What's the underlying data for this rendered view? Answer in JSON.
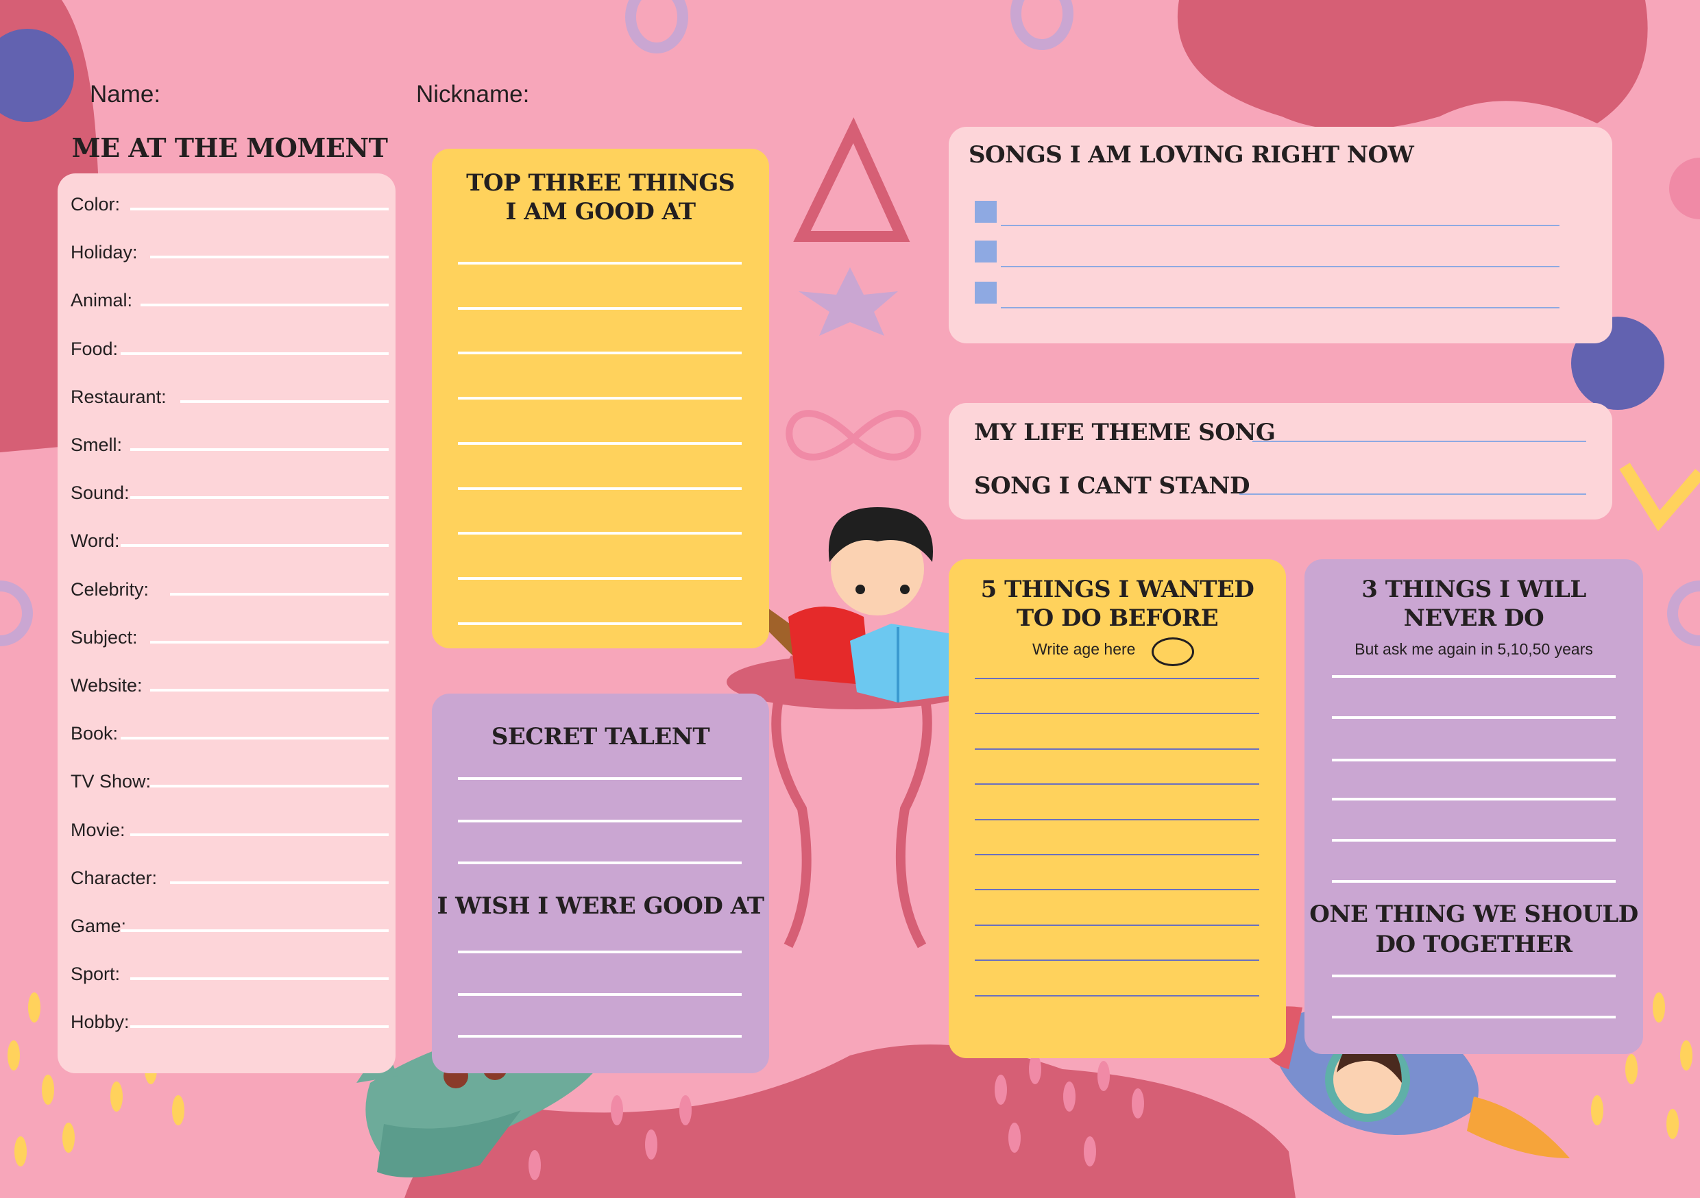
{
  "header": {
    "name_label": "Name:",
    "nickname_label": "Nickname:"
  },
  "me_at_the_moment": {
    "title": "ME AT THE MOMENT",
    "fields": [
      "Color:",
      "Holiday:",
      "Animal:",
      "Food:",
      "Restaurant:",
      "Smell:",
      "Sound:",
      "Word:",
      "Celebrity:",
      "Subject:",
      "Website:",
      "Book:",
      "TV Show:",
      "Movie:",
      "Character:",
      "Game:",
      "Sport:",
      "Hobby:"
    ]
  },
  "top_three": {
    "title_line1": "TOP THREE THINGS",
    "title_line2": "I AM GOOD AT"
  },
  "secret_talent": {
    "title": "SECRET TALENT",
    "wish_title": "I WISH I WERE GOOD AT"
  },
  "songs": {
    "title": "SONGS I AM LOVING RIGHT NOW"
  },
  "theme": {
    "life_theme_label": "MY LIFE THEME SONG",
    "cant_stand_label": "SONG I CANT STAND"
  },
  "five_things": {
    "title_line1": "5 THINGS I WANTED",
    "title_line2": "TO DO BEFORE",
    "age_prompt": "Write age here"
  },
  "three_things": {
    "title_line1": "3 THINGS I WILL",
    "title_line2": "NEVER DO",
    "subtitle": "But ask me again in 5,10,50 years",
    "together_line1": "ONE THING WE SHOULD",
    "together_line2": "DO TOGETHER"
  },
  "colors": {
    "background": "#f7a6ba",
    "dark_pink": "#d65f75",
    "panel_pink": "#fdd5d9",
    "panel_yellow": "#ffd25c",
    "panel_purple": "#caa6d2",
    "blob_purple": "#6262b0",
    "song_line_blue": "#8ea9e2"
  }
}
